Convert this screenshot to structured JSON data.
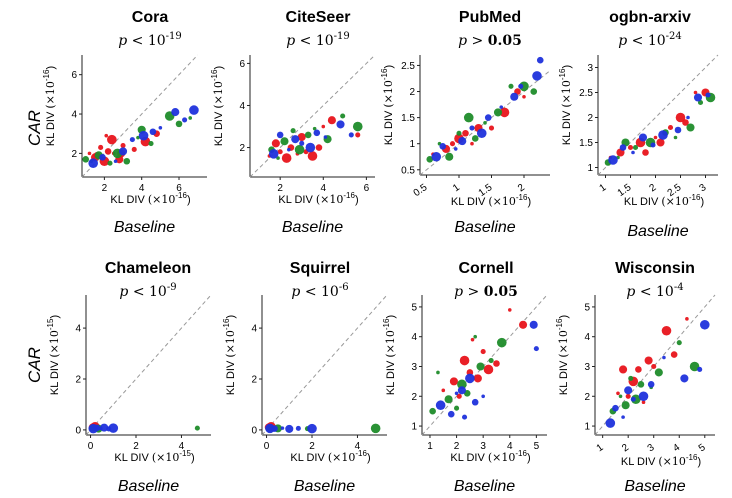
{
  "row_label": "CAR",
  "col_label": "Baseline",
  "ylabel_text": "KL DIV",
  "xlabel_text": "KL DIV",
  "colors": {
    "red": "#e8141b",
    "green": "#1f8c2a",
    "blue": "#1f32dc",
    "diag": "#999999"
  },
  "chart_data": [
    {
      "type": "scatter",
      "title": "Cora",
      "pvalue": "p < 10^-19",
      "p_op": "<",
      "p_exp": "-19",
      "exp_label": "-16",
      "xlim": [
        0.8,
        7.5
      ],
      "ylim": [
        0.8,
        7.0
      ],
      "xticks": [
        2,
        4,
        6
      ],
      "yticks": [
        2,
        4,
        6
      ],
      "series": [
        {
          "color": "red",
          "x": [
            1.2,
            1.5,
            1.8,
            2.0,
            2.2,
            2.5,
            2.8,
            3.0,
            2.4,
            1.6,
            2.1,
            2.9,
            3.6,
            4.2,
            4.8
          ],
          "y": [
            2.0,
            1.8,
            2.3,
            1.6,
            2.1,
            2.0,
            1.7,
            2.4,
            2.7,
            1.9,
            2.9,
            2.0,
            2.2,
            2.6,
            3.0
          ]
        },
        {
          "color": "green",
          "x": [
            1.0,
            1.3,
            1.7,
            2.3,
            2.7,
            3.2,
            3.8,
            4.0,
            4.5,
            5.5,
            6.0,
            6.6
          ],
          "y": [
            1.7,
            1.6,
            1.9,
            1.5,
            2.0,
            1.6,
            2.8,
            3.2,
            2.5,
            3.9,
            3.5,
            3.8
          ]
        },
        {
          "color": "blue",
          "x": [
            1.4,
            1.9,
            2.6,
            3.0,
            3.5,
            4.1,
            4.6,
            5.0,
            5.8,
            6.3,
            6.8
          ],
          "y": [
            1.5,
            1.8,
            1.6,
            2.1,
            2.7,
            2.9,
            3.1,
            3.3,
            4.1,
            3.7,
            4.2
          ]
        }
      ]
    },
    {
      "type": "scatter",
      "title": "CiteSeer",
      "pvalue": "p < 10^-19",
      "p_op": "<",
      "p_exp": "-19",
      "exp_label": "-16",
      "xlim": [
        0.6,
        6.4
      ],
      "ylim": [
        0.6,
        6.4
      ],
      "xticks": [
        2,
        4,
        6
      ],
      "yticks": [
        2,
        4,
        6
      ],
      "series": [
        {
          "color": "red",
          "x": [
            1.5,
            1.8,
            2.0,
            2.3,
            2.5,
            2.8,
            3.0,
            3.2,
            3.5,
            3.8,
            4.0,
            4.4,
            5.6
          ],
          "y": [
            1.6,
            2.2,
            1.8,
            1.5,
            2.0,
            1.7,
            2.5,
            1.8,
            1.6,
            2.0,
            3.0,
            3.3,
            2.6
          ]
        },
        {
          "color": "green",
          "x": [
            1.6,
            1.9,
            2.2,
            2.6,
            2.9,
            3.3,
            3.6,
            4.2,
            4.9,
            5.6
          ],
          "y": [
            1.9,
            1.5,
            2.3,
            2.8,
            1.9,
            2.6,
            2.9,
            2.4,
            3.5,
            3.0
          ]
        },
        {
          "color": "blue",
          "x": [
            1.7,
            2.0,
            2.4,
            2.7,
            3.0,
            3.4,
            3.7,
            4.1,
            4.8,
            5.3
          ],
          "y": [
            1.7,
            2.6,
            1.9,
            2.4,
            2.2,
            2.0,
            2.7,
            2.5,
            3.1,
            2.6
          ]
        }
      ]
    },
    {
      "type": "scatter",
      "title": "PubMed",
      "pvalue": "p > 0.05",
      "p_op": ">",
      "p_val": "0.05",
      "exp_label": "-16",
      "xlim": [
        0.4,
        2.4
      ],
      "ylim": [
        0.4,
        2.7
      ],
      "xticks": [
        0.5,
        1.0,
        1.5,
        2.0
      ],
      "yticks": [
        0.5,
        1.0,
        1.5,
        2.0,
        2.5
      ],
      "series": [
        {
          "color": "red",
          "x": [
            0.6,
            0.8,
            0.9,
            1.0,
            1.1,
            1.2,
            1.3,
            1.5,
            1.7,
            1.9,
            2.0
          ],
          "y": [
            0.8,
            0.9,
            1.0,
            1.1,
            1.2,
            1.0,
            1.3,
            1.3,
            1.6,
            2.0,
            1.9
          ]
        },
        {
          "color": "green",
          "x": [
            0.55,
            0.7,
            0.85,
            1.0,
            1.15,
            1.25,
            1.4,
            1.6,
            1.8,
            2.0,
            2.15
          ],
          "y": [
            0.7,
            1.0,
            0.75,
            1.2,
            1.5,
            1.1,
            1.4,
            1.6,
            2.1,
            2.1,
            2.0
          ]
        },
        {
          "color": "blue",
          "x": [
            0.65,
            0.75,
            0.95,
            1.05,
            1.2,
            1.35,
            1.45,
            1.65,
            1.85,
            1.95,
            2.2,
            2.25
          ],
          "y": [
            0.75,
            0.95,
            0.9,
            1.05,
            1.3,
            1.2,
            1.5,
            1.7,
            1.9,
            2.1,
            2.3,
            2.6
          ]
        }
      ]
    },
    {
      "type": "scatter",
      "title": "ogbn-arxiv",
      "pvalue": "p < 10^-24",
      "p_op": "<",
      "p_exp": "-24",
      "exp_label": "-16",
      "xlim": [
        0.85,
        3.25
      ],
      "ylim": [
        0.85,
        3.25
      ],
      "xticks": [
        1.0,
        1.5,
        2.0,
        2.5,
        3.0
      ],
      "yticks": [
        1.0,
        1.5,
        2.0,
        2.5,
        3.0
      ],
      "series": [
        {
          "color": "red",
          "x": [
            1.1,
            1.3,
            1.5,
            1.7,
            1.8,
            2.0,
            2.1,
            2.3,
            2.5,
            2.6,
            2.8,
            3.0
          ],
          "y": [
            1.2,
            1.3,
            1.4,
            1.5,
            1.3,
            1.6,
            1.5,
            1.8,
            2.0,
            1.9,
            2.5,
            2.5
          ]
        },
        {
          "color": "green",
          "x": [
            1.05,
            1.25,
            1.4,
            1.6,
            1.9,
            2.2,
            2.4,
            2.7,
            2.9,
            3.1
          ],
          "y": [
            1.1,
            1.2,
            1.5,
            1.4,
            1.5,
            1.7,
            1.6,
            1.8,
            2.3,
            2.4
          ]
        },
        {
          "color": "blue",
          "x": [
            1.15,
            1.35,
            1.55,
            1.75,
            1.95,
            2.15,
            2.45,
            2.65,
            2.85,
            3.05
          ],
          "y": [
            1.15,
            1.4,
            1.3,
            1.6,
            1.45,
            1.65,
            1.75,
            2.0,
            2.4,
            2.45
          ]
        }
      ]
    },
    {
      "type": "scatter",
      "title": "Chameleon",
      "pvalue": "p < 10^-9",
      "p_op": "<",
      "p_exp": "-9",
      "exp_label": "-15",
      "xlim": [
        -0.2,
        5.3
      ],
      "ylim": [
        -0.2,
        5.3
      ],
      "xticks": [
        0,
        2,
        4
      ],
      "yticks": [
        0,
        2,
        4
      ],
      "series": [
        {
          "color": "red",
          "x": [
            0.05,
            0.1,
            0.15,
            0.2,
            0.25,
            0.3
          ],
          "y": [
            0.05,
            0.1,
            0.15,
            0.12,
            0.08,
            0.1
          ]
        },
        {
          "color": "green",
          "x": [
            0.08,
            0.18,
            0.35,
            4.7
          ],
          "y": [
            0.06,
            0.1,
            0.05,
            0.07
          ]
        },
        {
          "color": "blue",
          "x": [
            0.12,
            0.28,
            0.45,
            0.6,
            0.8,
            1.0
          ],
          "y": [
            0.05,
            0.08,
            0.06,
            0.09,
            0.04,
            0.07
          ]
        }
      ]
    },
    {
      "type": "scatter",
      "title": "Squirrel",
      "pvalue": "p < 10^-6",
      "p_op": "<",
      "p_exp": "-6",
      "exp_label": "-16",
      "xlim": [
        -0.2,
        5.3
      ],
      "ylim": [
        -0.2,
        5.3
      ],
      "xticks": [
        0,
        2,
        4
      ],
      "yticks": [
        0,
        2,
        4
      ],
      "series": [
        {
          "color": "red",
          "x": [
            0.05,
            0.1,
            0.15,
            0.2,
            0.3
          ],
          "y": [
            0.05,
            0.1,
            0.08,
            0.12,
            0.07
          ]
        },
        {
          "color": "green",
          "x": [
            0.1,
            0.2,
            0.5,
            1.8,
            4.8
          ],
          "y": [
            0.05,
            0.08,
            0.06,
            0.05,
            0.06
          ]
        },
        {
          "color": "blue",
          "x": [
            0.15,
            0.35,
            0.7,
            1.0,
            1.4,
            2.0
          ],
          "y": [
            0.06,
            0.05,
            0.07,
            0.04,
            0.06,
            0.05
          ]
        }
      ]
    },
    {
      "type": "scatter",
      "title": "Cornell",
      "pvalue": "p > 0.05",
      "p_op": ">",
      "p_val": "0.05",
      "exp_label": "-16",
      "xlim": [
        0.7,
        5.4
      ],
      "ylim": [
        0.7,
        5.4
      ],
      "xticks": [
        1,
        2,
        3,
        4,
        5
      ],
      "yticks": [
        1,
        2,
        3,
        4,
        5
      ],
      "series": [
        {
          "color": "red",
          "x": [
            1.5,
            1.9,
            2.1,
            2.3,
            2.5,
            2.6,
            2.8,
            3.0,
            3.2,
            3.5,
            4.0,
            4.5
          ],
          "y": [
            2.2,
            2.5,
            2.0,
            3.2,
            2.8,
            3.9,
            2.6,
            3.5,
            2.9,
            3.1,
            4.9,
            4.4
          ]
        },
        {
          "color": "green",
          "x": [
            1.1,
            1.3,
            1.7,
            2.0,
            2.2,
            2.4,
            2.7,
            2.9,
            3.3,
            3.7
          ],
          "y": [
            1.5,
            2.8,
            1.9,
            1.6,
            2.4,
            2.1,
            4.0,
            3.0,
            3.2,
            3.8
          ]
        },
        {
          "color": "blue",
          "x": [
            1.4,
            1.8,
            2.0,
            2.2,
            2.3,
            2.5,
            2.7,
            3.0,
            4.9,
            5.0
          ],
          "y": [
            1.7,
            1.4,
            2.1,
            2.2,
            1.3,
            2.6,
            1.8,
            2.0,
            4.4,
            3.6
          ]
        }
      ]
    },
    {
      "type": "scatter",
      "title": "Wisconsin",
      "pvalue": "p < 10^-4",
      "p_op": "<",
      "p_exp": "-4",
      "exp_label": "-16",
      "xlim": [
        0.7,
        5.4
      ],
      "ylim": [
        0.7,
        5.4
      ],
      "xticks": [
        1,
        2,
        3,
        4,
        5
      ],
      "yticks": [
        1,
        2,
        3,
        4,
        5
      ],
      "series": [
        {
          "color": "red",
          "x": [
            1.6,
            1.8,
            2.0,
            2.2,
            2.4,
            2.6,
            2.8,
            3.0,
            3.5,
            3.8,
            4.3
          ],
          "y": [
            2.1,
            2.9,
            2.0,
            2.5,
            2.9,
            1.8,
            3.2,
            3.0,
            4.2,
            3.4,
            4.6
          ]
        },
        {
          "color": "green",
          "x": [
            1.4,
            1.7,
            1.9,
            2.1,
            2.3,
            2.5,
            2.9,
            3.2,
            4.0,
            4.6
          ],
          "y": [
            1.5,
            2.0,
            1.7,
            2.6,
            1.9,
            2.4,
            2.3,
            2.8,
            3.8,
            3.0
          ]
        },
        {
          "color": "blue",
          "x": [
            1.3,
            1.5,
            1.8,
            2.0,
            2.2,
            2.6,
            2.9,
            3.4,
            4.2,
            4.8,
            5.0
          ],
          "y": [
            1.1,
            1.6,
            1.3,
            2.2,
            1.9,
            2.0,
            2.4,
            3.3,
            2.6,
            2.9,
            4.4
          ]
        }
      ]
    }
  ]
}
